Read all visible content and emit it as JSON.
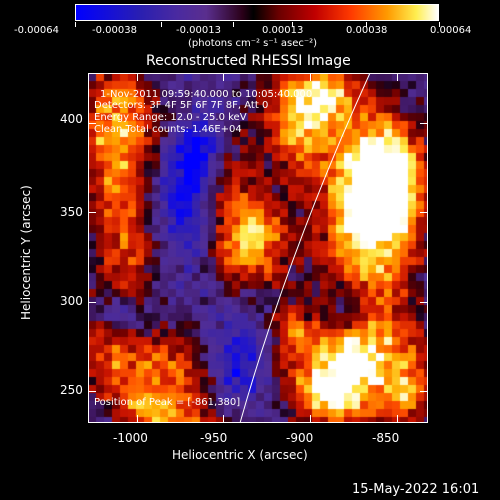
{
  "colorbar": {
    "tick_labels": [
      "-0.00064",
      "-0.00038",
      "-0.00013",
      "0.00013",
      "0.00038",
      "0.00064"
    ],
    "units": "(photons cm⁻² s⁻¹ asec⁻²)"
  },
  "title": "Reconstructed RHESSI Image",
  "annotations": {
    "time_range": "1-Nov-2011 09:59:40.000 to 10:05:40.000",
    "detectors": "Detectors: 3F 4F 5F 6F 7F 8F, Att 0",
    "energy_range": "Energy Range: 12.0 - 25.0 keV",
    "algorithm": "Clean     Total counts: 1.46E+04",
    "peak_position": "Position of Peak = [-861,380]"
  },
  "axes": {
    "xlabel": "Heliocentric X (arcsec)",
    "ylabel": "Heliocentric Y (arcsec)",
    "x_ticks": [
      "-1000",
      "-950",
      "-900",
      "-850"
    ],
    "y_ticks": [
      "400",
      "350",
      "300",
      "250"
    ],
    "x_range": [
      -1028,
      -832
    ],
    "y_range": [
      232,
      428
    ]
  },
  "footer_timestamp": "15-May-2022 16:01",
  "colors": {
    "background": "#000000",
    "foreground": "#ffffff",
    "colormap_low": "#0000ff",
    "colormap_mid": "#000000",
    "colormap_high": "#ffffff"
  }
}
